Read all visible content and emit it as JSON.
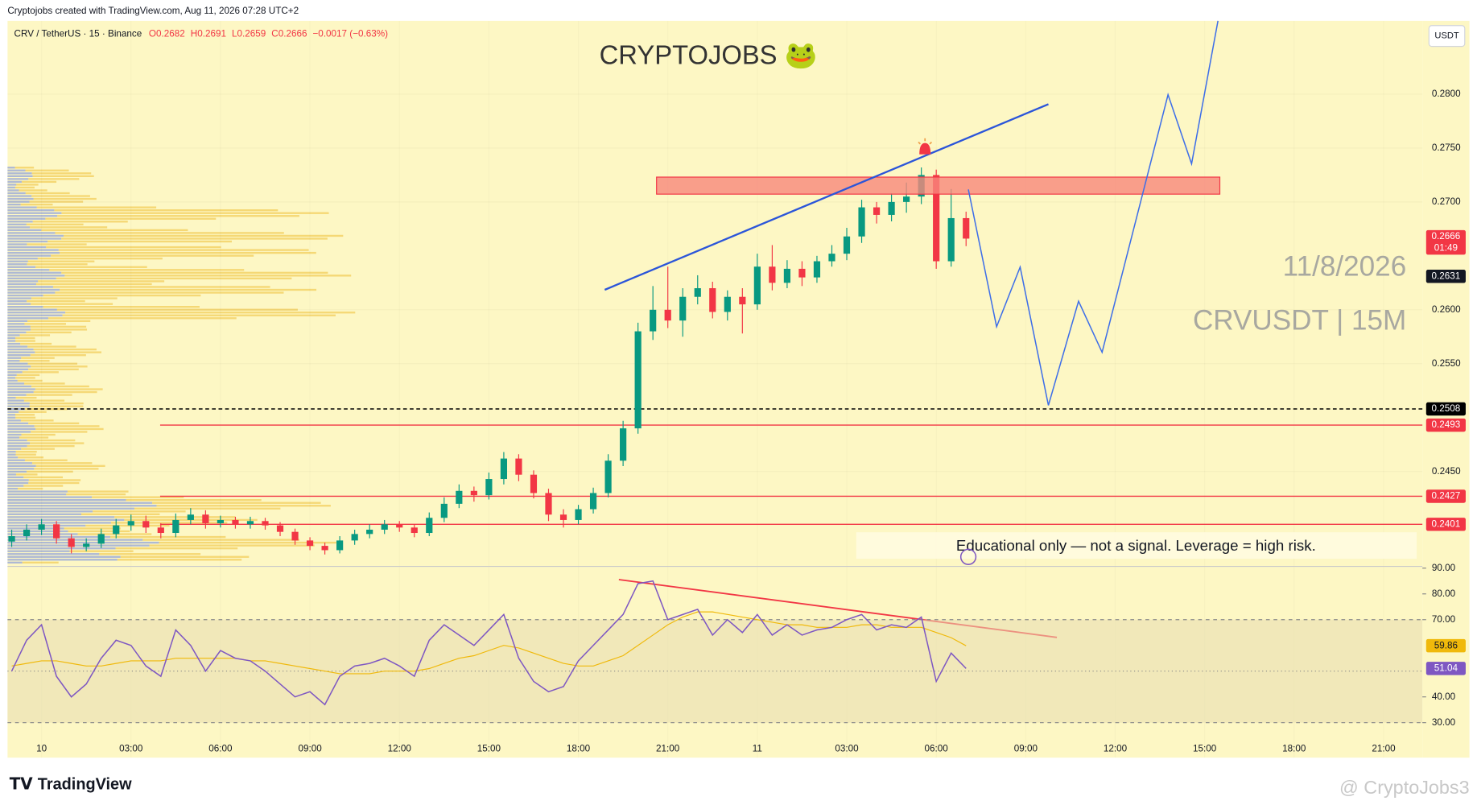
{
  "header": {
    "attribution": "Cryptojobs created with TradingView.com, Aug 11, 2026 07:28 UTC+2",
    "tv_logo": "TradingView",
    "watermark": "@ CryptoJobs3"
  },
  "chart_data": [
    {
      "type": "candlestick",
      "symbol": "CRV / TetherUS · 15 · Binance",
      "ohlc_text": [
        "O0.2682",
        "H0.2691",
        "L0.2659",
        "C0.2666",
        "−0.0017 (−0.63%)"
      ],
      "title": "CRYPTOJOBS 🐸",
      "date_text": "11/8/2026",
      "pair_text": "CRVUSDT | 15M",
      "note": "Educational only — not a signal. Leverage  = high risk.",
      "currency": "USDT",
      "countdown": "01:49",
      "up_color": "#089981",
      "down_color": "#f23645",
      "x": [
        -1,
        -0.5,
        0,
        0.5,
        1,
        1.5,
        2,
        2.5,
        3,
        3.5,
        4,
        4.5,
        5,
        5.5,
        6,
        6.5,
        7,
        7.5,
        8,
        8.5,
        9,
        9.5,
        10,
        10.5,
        11,
        11.5,
        12,
        12.5,
        13,
        13.5,
        14,
        14.5,
        15,
        15.5,
        16,
        16.5,
        17,
        17.5,
        18,
        18.5,
        19,
        19.5,
        20,
        20.5,
        21,
        21.5,
        22,
        22.5,
        23,
        23.5,
        24,
        24.5,
        25,
        25.5,
        26,
        26.5,
        27,
        27.5,
        28,
        28.5,
        29,
        29.5,
        30,
        30.5,
        31
      ],
      "open": [
        0.2385,
        0.239,
        0.2396,
        0.2401,
        0.2388,
        0.238,
        0.2383,
        0.2392,
        0.24,
        0.2404,
        0.2398,
        0.2393,
        0.2405,
        0.241,
        0.2402,
        0.2405,
        0.2401,
        0.2404,
        0.24,
        0.2394,
        0.2386,
        0.2381,
        0.2377,
        0.2386,
        0.2392,
        0.2396,
        0.2401,
        0.2398,
        0.2393,
        0.2407,
        0.242,
        0.2432,
        0.2428,
        0.2443,
        0.2462,
        0.2447,
        0.243,
        0.241,
        0.2405,
        0.2415,
        0.243,
        0.246,
        0.249,
        0.258,
        0.26,
        0.259,
        0.2612,
        0.262,
        0.2598,
        0.2612,
        0.2605,
        0.264,
        0.2625,
        0.2638,
        0.263,
        0.2645,
        0.2652,
        0.2668,
        0.2695,
        0.2688,
        0.27,
        0.2705,
        0.2725,
        0.2645,
        0.2685
      ],
      "high": [
        0.2396,
        0.2401,
        0.2406,
        0.2404,
        0.2392,
        0.2388,
        0.2397,
        0.2406,
        0.241,
        0.2409,
        0.2402,
        0.2411,
        0.2416,
        0.2414,
        0.2409,
        0.2408,
        0.2408,
        0.2407,
        0.2403,
        0.2397,
        0.2389,
        0.2384,
        0.239,
        0.2396,
        0.2401,
        0.2405,
        0.2404,
        0.2401,
        0.2412,
        0.2426,
        0.2438,
        0.2436,
        0.2449,
        0.2468,
        0.2466,
        0.2451,
        0.2434,
        0.2415,
        0.2419,
        0.2435,
        0.2466,
        0.2497,
        0.2588,
        0.2622,
        0.264,
        0.262,
        0.2632,
        0.2626,
        0.2618,
        0.262,
        0.2652,
        0.266,
        0.2646,
        0.2645,
        0.265,
        0.266,
        0.2676,
        0.2702,
        0.27,
        0.2708,
        0.2718,
        0.2732,
        0.273,
        0.2712,
        0.2691
      ],
      "low": [
        0.238,
        0.2386,
        0.2391,
        0.2383,
        0.2374,
        0.2376,
        0.2379,
        0.2388,
        0.2395,
        0.2393,
        0.2388,
        0.2389,
        0.2401,
        0.2397,
        0.2398,
        0.2397,
        0.2397,
        0.2396,
        0.239,
        0.2382,
        0.2377,
        0.2373,
        0.2374,
        0.2382,
        0.2388,
        0.2392,
        0.2394,
        0.2389,
        0.239,
        0.2403,
        0.2416,
        0.2422,
        0.2424,
        0.2438,
        0.2441,
        0.2425,
        0.2404,
        0.2398,
        0.2401,
        0.2411,
        0.2426,
        0.2455,
        0.2485,
        0.2572,
        0.2583,
        0.2575,
        0.2605,
        0.2592,
        0.259,
        0.2578,
        0.26,
        0.2618,
        0.262,
        0.2622,
        0.2625,
        0.264,
        0.2646,
        0.2662,
        0.268,
        0.2682,
        0.269,
        0.2698,
        0.2638,
        0.264,
        0.2659
      ],
      "close": [
        0.239,
        0.2396,
        0.2401,
        0.2388,
        0.238,
        0.2383,
        0.2392,
        0.24,
        0.2404,
        0.2398,
        0.2393,
        0.2405,
        0.241,
        0.2402,
        0.2405,
        0.2401,
        0.2404,
        0.24,
        0.2394,
        0.2386,
        0.2381,
        0.2377,
        0.2386,
        0.2392,
        0.2396,
        0.2401,
        0.2398,
        0.2393,
        0.2407,
        0.242,
        0.2432,
        0.2428,
        0.2443,
        0.2462,
        0.2447,
        0.243,
        0.241,
        0.2405,
        0.2415,
        0.243,
        0.246,
        0.249,
        0.258,
        0.26,
        0.259,
        0.2612,
        0.262,
        0.2598,
        0.2612,
        0.2605,
        0.264,
        0.2625,
        0.2638,
        0.263,
        0.2645,
        0.2652,
        0.2668,
        0.2695,
        0.2688,
        0.27,
        0.2705,
        0.2725,
        0.2645,
        0.2685,
        0.2666
      ],
      "xlim": [
        -1.14,
        46.3
      ],
      "xticks": [
        {
          "value": 0,
          "label": "10"
        },
        {
          "value": 3,
          "label": "03:00"
        },
        {
          "value": 6,
          "label": "06:00"
        },
        {
          "value": 9,
          "label": "09:00"
        },
        {
          "value": 12,
          "label": "12:00"
        },
        {
          "value": 15,
          "label": "15:00"
        },
        {
          "value": 18,
          "label": "18:00"
        },
        {
          "value": 21,
          "label": "21:00"
        },
        {
          "value": 24,
          "label": "11"
        },
        {
          "value": 27,
          "label": "03:00"
        },
        {
          "value": 30,
          "label": "06:00"
        },
        {
          "value": 33,
          "label": "09:00"
        },
        {
          "value": 36,
          "label": "12:00"
        },
        {
          "value": 39,
          "label": "15:00"
        },
        {
          "value": 42,
          "label": "18:00"
        },
        {
          "value": 45,
          "label": "21:00"
        }
      ],
      "ylim": [
        0.2362,
        0.2868
      ],
      "yticks": [
        {
          "value": 0.245,
          "label": "0.2450"
        },
        {
          "value": 0.255,
          "label": "0.2550"
        },
        {
          "value": 0.26,
          "label": "0.2600"
        },
        {
          "value": 0.27,
          "label": "0.2700"
        },
        {
          "value": 0.275,
          "label": "0.2750"
        },
        {
          "value": 0.28,
          "label": "0.2800"
        }
      ],
      "levels": [
        {
          "value": 0.2631,
          "color": "#131722",
          "line": false
        },
        {
          "value": 0.2508,
          "color": "#000000",
          "line": "dashed"
        },
        {
          "value": 0.2493,
          "color": "#f23645",
          "line": "solid"
        },
        {
          "value": 0.2427,
          "color": "#f23645",
          "line": "solid"
        },
        {
          "value": 0.2401,
          "color": "#f23645",
          "line": "solid"
        }
      ]
    },
    {
      "type": "line",
      "series": [
        {
          "color": "#7e57c2",
          "values": [
            50,
            62,
            68,
            48,
            40,
            45,
            55,
            62,
            60,
            52,
            48,
            66,
            60,
            50,
            58,
            55,
            54,
            50,
            45,
            40,
            42,
            37,
            48,
            52,
            53,
            55,
            52,
            48,
            62,
            68,
            64,
            60,
            66,
            72,
            55,
            46,
            42,
            44,
            54,
            60,
            66,
            72,
            84,
            85,
            70,
            72,
            74,
            64,
            70,
            65,
            72,
            64,
            68,
            64,
            66,
            67,
            70,
            72,
            66,
            68,
            67,
            71,
            46,
            57,
            51.04
          ]
        },
        {
          "color": "#f0b90b",
          "values": [
            52,
            53,
            54,
            54,
            53,
            52,
            52,
            53,
            54,
            54,
            54,
            55,
            55,
            55,
            55,
            55,
            54,
            54,
            53,
            52,
            51,
            50,
            49,
            49,
            49,
            50,
            50,
            50,
            51,
            53,
            55,
            56,
            58,
            60,
            59,
            57,
            55,
            53,
            52,
            52,
            54,
            56,
            60,
            64,
            68,
            71,
            73,
            73,
            72,
            71,
            70,
            69,
            68,
            68,
            67,
            67,
            67,
            68,
            68,
            67,
            67,
            67,
            65,
            63,
            59.86
          ]
        }
      ],
      "ylim": [
        16.4,
        90.7
      ],
      "yticks": [
        {
          "value": 30,
          "label": "30.00"
        },
        {
          "value": 40,
          "label": "40.00"
        },
        {
          "value": 70,
          "label": "70.00"
        },
        {
          "value": 80,
          "label": "80.00"
        },
        {
          "value": 90,
          "label": "90.00"
        }
      ],
      "band": [
        30,
        70
      ],
      "midline": 50
    }
  ]
}
